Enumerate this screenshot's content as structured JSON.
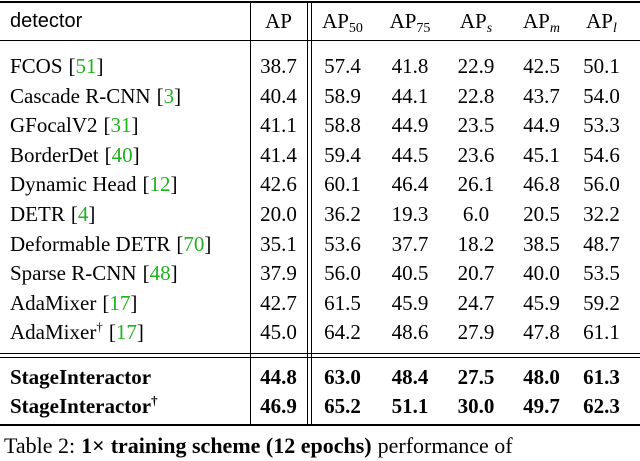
{
  "table": {
    "header": [
      {
        "text": "detector"
      },
      {
        "text": "AP"
      },
      {
        "text": "AP",
        "sub": "50"
      },
      {
        "text": "AP",
        "sub": "75"
      },
      {
        "text": "AP",
        "sub": "s",
        "sub_italic": true
      },
      {
        "text": "AP",
        "sub": "m",
        "sub_italic": true
      },
      {
        "text": "AP",
        "sub": "l",
        "sub_italic": true
      }
    ],
    "citation_brackets": [
      "[",
      "]"
    ],
    "groups": [
      {
        "bold": false,
        "rows": [
          {
            "name": "FCOS",
            "ref": "51",
            "values": [
              "38.7",
              "57.4",
              "41.8",
              "22.9",
              "42.5",
              "50.1"
            ]
          },
          {
            "name": "Cascade R-CNN",
            "ref": "3",
            "values": [
              "40.4",
              "58.9",
              "44.1",
              "22.8",
              "43.7",
              "54.0"
            ]
          },
          {
            "name": "GFocalV2",
            "ref": "31",
            "values": [
              "41.1",
              "58.8",
              "44.9",
              "23.5",
              "44.9",
              "53.3"
            ]
          },
          {
            "name": "BorderDet",
            "ref": "40",
            "values": [
              "41.4",
              "59.4",
              "44.5",
              "23.6",
              "45.1",
              "54.6"
            ]
          },
          {
            "name": "Dynamic Head",
            "ref": "12",
            "values": [
              "42.6",
              "60.1",
              "46.4",
              "26.1",
              "46.8",
              "56.0"
            ]
          },
          {
            "name": "DETR",
            "ref": "4",
            "values": [
              "20.0",
              "36.2",
              "19.3",
              "6.0",
              "20.5",
              "32.2"
            ]
          },
          {
            "name": "Deformable DETR",
            "ref": "70",
            "values": [
              "35.1",
              "53.6",
              "37.7",
              "18.2",
              "38.5",
              "48.7"
            ]
          },
          {
            "name": "Sparse R-CNN",
            "ref": "48",
            "values": [
              "37.9",
              "56.0",
              "40.5",
              "20.7",
              "40.0",
              "53.5"
            ]
          },
          {
            "name": "AdaMixer",
            "ref": "17",
            "values": [
              "42.7",
              "61.5",
              "45.9",
              "24.7",
              "45.9",
              "59.2"
            ]
          },
          {
            "name": "AdaMixer",
            "sup": "†",
            "ref": "17",
            "values": [
              "45.0",
              "64.2",
              "48.6",
              "27.9",
              "47.8",
              "61.1"
            ]
          }
        ]
      },
      {
        "bold": true,
        "rows": [
          {
            "name": "StageInteractor",
            "values": [
              "44.8",
              "63.0",
              "48.4",
              "27.5",
              "48.0",
              "61.3"
            ]
          },
          {
            "name": "StageInteractor",
            "sup": "†",
            "values": [
              "46.9",
              "65.2",
              "51.1",
              "30.0",
              "49.7",
              "62.3"
            ]
          }
        ]
      }
    ]
  },
  "caption": [
    {
      "text": "Table 2:",
      "bold": false
    },
    {
      "text": "1×",
      "bold": true
    },
    {
      "text": "training scheme (12 epochs)",
      "bold": true
    },
    {
      "text": "performance of",
      "bold": false
    }
  ]
}
